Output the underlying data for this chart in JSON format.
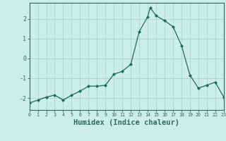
{
  "x": [
    0,
    1,
    2,
    3,
    4,
    5,
    6,
    7,
    8,
    9,
    10,
    11,
    12,
    13,
    14,
    14.3,
    15,
    16,
    17,
    18,
    19,
    20,
    21,
    22,
    23
  ],
  "y": [
    -2.25,
    -2.1,
    -1.95,
    -1.85,
    -2.1,
    -1.85,
    -1.65,
    -1.4,
    -1.4,
    -1.35,
    -0.8,
    -0.65,
    -0.3,
    1.35,
    2.1,
    2.55,
    2.15,
    1.9,
    1.6,
    0.65,
    -0.85,
    -1.5,
    -1.35,
    -1.2,
    -1.95
  ],
  "line_color": "#1a6b5a",
  "marker": "D",
  "marker_size": 2,
  "bg_color": "#cceee8",
  "grid_color": "#aad4cc",
  "axis_color": "#2d6b5a",
  "xlabel": "Humidex (Indice chaleur)",
  "xlim": [
    0,
    23
  ],
  "ylim": [
    -2.6,
    2.8
  ],
  "yticks": [
    -2,
    -1,
    0,
    1,
    2
  ],
  "xticks": [
    0,
    1,
    2,
    3,
    4,
    5,
    6,
    7,
    8,
    9,
    10,
    11,
    12,
    13,
    14,
    15,
    16,
    17,
    18,
    19,
    20,
    21,
    22,
    23
  ],
  "label_fontsize": 7.5
}
